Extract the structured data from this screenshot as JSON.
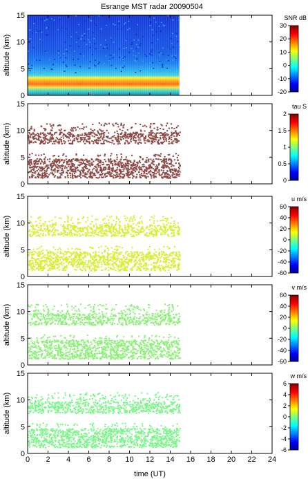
{
  "title": "Esrange MST radar 20090504",
  "xlabel": "time (UT)",
  "x_ticks": [
    0,
    2,
    4,
    6,
    8,
    10,
    12,
    14,
    16,
    18,
    20,
    22,
    24
  ],
  "y_ticks": [
    0,
    5,
    10,
    15
  ],
  "data_extent_hours": 14.9,
  "chart_data": [
    {
      "type": "heatmap",
      "ylabel": "altitude (km)",
      "xlim": [
        0,
        24
      ],
      "ylim": [
        0,
        15
      ],
      "colorbar_label": "SNR dB",
      "colorbar_range": [
        -20,
        30
      ],
      "colorbar_ticks": [
        "30",
        "20",
        "10",
        "0",
        "-10",
        "-20"
      ],
      "colormap": "jet",
      "coverage": "full column from 0 to 15 km, strong return (red/yellow) 1-4 km, weak (blue) above"
    },
    {
      "type": "heatmap",
      "ylabel": "altitude (km)",
      "xlim": [
        0,
        24
      ],
      "ylim": [
        0,
        15
      ],
      "colorbar_label": "tau S",
      "colorbar_range": [
        0,
        2
      ],
      "colorbar_ticks": [
        "2",
        "1.5",
        "1",
        "0.5",
        "0"
      ],
      "colormap": "jet",
      "dominant_color": "#8b4a46",
      "coverage": "layers near 1-5 km and 7-10 km"
    },
    {
      "type": "heatmap",
      "ylabel": "altitude (km)",
      "xlim": [
        0,
        24
      ],
      "ylim": [
        0,
        15
      ],
      "colorbar_label": "u m/s",
      "colorbar_range": [
        -60,
        60
      ],
      "colorbar_ticks": [
        "60",
        "40",
        "20",
        "0",
        "-20",
        "-40",
        "-60"
      ],
      "colormap": "jet",
      "dominant_color": "#d8ee3a",
      "coverage": "layers near 1-5 km and 7-10 km"
    },
    {
      "type": "heatmap",
      "ylabel": "altitude (km)",
      "xlim": [
        0,
        24
      ],
      "ylim": [
        0,
        15
      ],
      "colorbar_label": "v m/s",
      "colorbar_range": [
        -60,
        60
      ],
      "colorbar_ticks": [
        "60",
        "40",
        "20",
        "0",
        "-20",
        "-40",
        "-60"
      ],
      "colormap": "jet",
      "dominant_color": "#8ef07a",
      "coverage": "layers near 1-5 km and 7-10 km"
    },
    {
      "type": "heatmap",
      "ylabel": "altitude (km)",
      "xlim": [
        0,
        24
      ],
      "ylim": [
        0,
        15
      ],
      "colorbar_label": "w m/s",
      "colorbar_range": [
        -6,
        6
      ],
      "colorbar_ticks": [
        "6",
        "4",
        "2",
        "0",
        "-2",
        "-4",
        "-6"
      ],
      "colormap": "jet",
      "dominant_color": "#7cf58a",
      "coverage": "layers near 1-5 km and 7-10 km"
    }
  ]
}
